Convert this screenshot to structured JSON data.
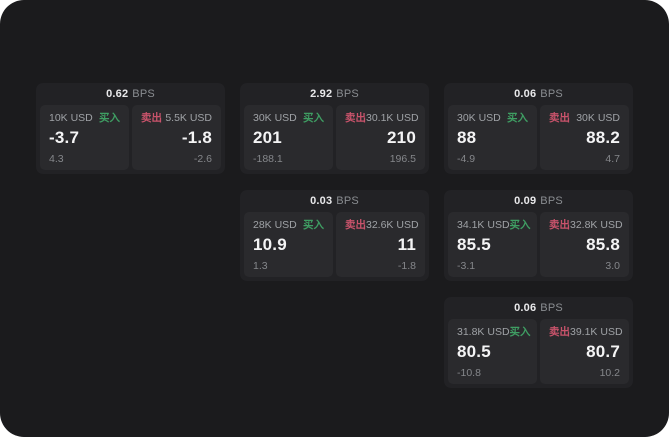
{
  "colors": {
    "buy": "#3f9e63",
    "sell": "#c9536b"
  },
  "labels": {
    "bps_unit": "BPS",
    "buy": "买入",
    "sell": "卖出"
  },
  "cards": [
    {
      "row": 1,
      "col": 1,
      "bps": "0.62",
      "buy": {
        "amount": "10K USD",
        "value": "-3.7",
        "sub": "4.3"
      },
      "sell": {
        "amount": "5.5K USD",
        "value": "-1.8",
        "sub": "-2.6"
      }
    },
    {
      "row": 1,
      "col": 2,
      "bps": "2.92",
      "buy": {
        "amount": "30K USD",
        "value": "201",
        "sub": "-188.1"
      },
      "sell": {
        "amount": "30.1K USD",
        "value": "210",
        "sub": "196.5"
      }
    },
    {
      "row": 1,
      "col": 3,
      "bps": "0.06",
      "buy": {
        "amount": "30K USD",
        "value": "88",
        "sub": "-4.9"
      },
      "sell": {
        "amount": "30K USD",
        "value": "88.2",
        "sub": "4.7"
      }
    },
    {
      "row": 2,
      "col": 2,
      "bps": "0.03",
      "buy": {
        "amount": "28K USD",
        "value": "10.9",
        "sub": "1.3"
      },
      "sell": {
        "amount": "32.6K USD",
        "value": "11",
        "sub": "-1.8"
      }
    },
    {
      "row": 2,
      "col": 3,
      "bps": "0.09",
      "buy": {
        "amount": "34.1K USD",
        "value": "85.5",
        "sub": "-3.1"
      },
      "sell": {
        "amount": "32.8K USD",
        "value": "85.8",
        "sub": "3.0"
      }
    },
    {
      "row": 3,
      "col": 3,
      "bps": "0.06",
      "buy": {
        "amount": "31.8K USD",
        "value": "80.5",
        "sub": "-10.8"
      },
      "sell": {
        "amount": "39.1K USD",
        "value": "80.7",
        "sub": "10.2"
      }
    }
  ]
}
